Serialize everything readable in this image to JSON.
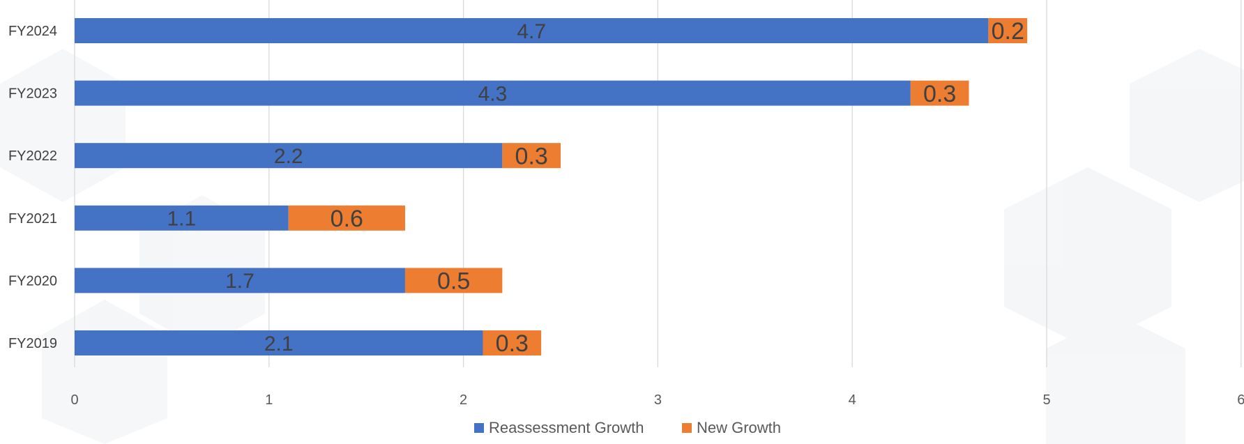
{
  "chart_data": {
    "type": "bar",
    "orientation": "horizontal",
    "stacked": true,
    "categories": [
      "FY2024",
      "FY2023",
      "FY2022",
      "FY2021",
      "FY2020",
      "FY2019"
    ],
    "series": [
      {
        "name": "Reassessment Growth",
        "values": [
          4.7,
          4.3,
          2.2,
          1.1,
          1.7,
          2.1
        ],
        "color": "#4472C4"
      },
      {
        "name": "New Growth",
        "values": [
          0.2,
          0.3,
          0.3,
          0.6,
          0.5,
          0.3
        ],
        "color": "#ED7D31"
      }
    ],
    "xlim": [
      0,
      6
    ],
    "x_ticks": [
      "0",
      "1",
      "2",
      "3",
      "4",
      "5",
      "6"
    ],
    "grid": "vertical",
    "legend_position": "bottom",
    "title": "",
    "xlabel": "",
    "ylabel": ""
  }
}
